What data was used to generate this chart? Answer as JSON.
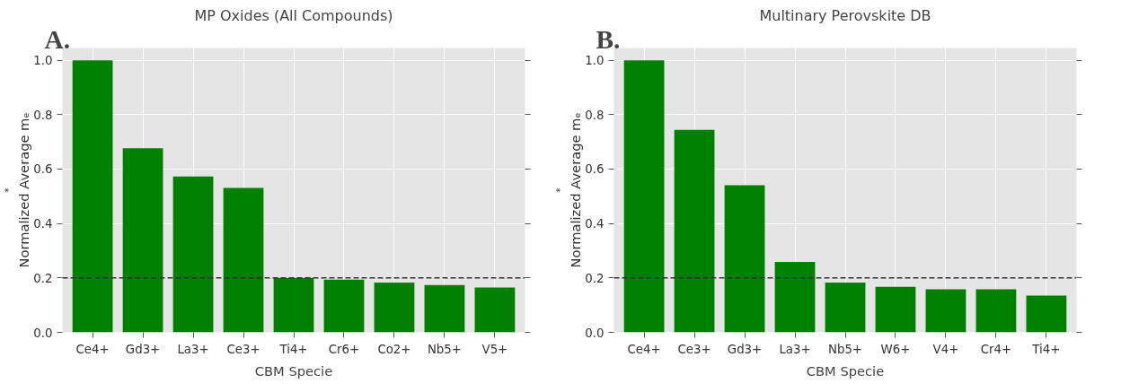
{
  "chart_data": [
    {
      "type": "bar",
      "title": "MP Oxides (All Compounds)",
      "xlabel": "CBM Specie",
      "ylabel": "Normalized Average mₑ$^{*}$",
      "annotations": [
        "A."
      ],
      "categories": [
        "Ce4+",
        "Gd3+",
        "La3+",
        "Ce3+",
        "Ti4+",
        "Cr6+",
        "Co2+",
        "Nb5+",
        "V5+"
      ],
      "values": [
        1.0,
        0.677,
        0.573,
        0.531,
        0.2,
        0.194,
        0.183,
        0.174,
        0.165
      ],
      "color": "#008000",
      "ylim": [
        0,
        1.045
      ],
      "yticks": [
        {
          "value": 0,
          "label": "0.0"
        },
        {
          "value": 0.2,
          "label": "0.2"
        },
        {
          "value": 0.4,
          "label": "0.4"
        },
        {
          "value": 0.6,
          "label": "0.6"
        },
        {
          "value": 0.8,
          "label": "0.8"
        },
        {
          "value": 1,
          "label": "1.0"
        }
      ],
      "grid": true,
      "ref_lines": [
        {
          "axis": "y",
          "value": 0.2,
          "color": "#333333",
          "line_style": "dashed"
        }
      ]
    },
    {
      "type": "bar",
      "title": "Multinary Perovskite DB",
      "xlabel": "CBM Specie",
      "ylabel": "Normalized Average mₑ$^{*}$",
      "annotations": [
        "B."
      ],
      "categories": [
        "Ce4+",
        "Ce3+",
        "Gd3+",
        "La3+",
        "Nb5+",
        "W6+",
        "V4+",
        "Cr4+",
        "Ti4+"
      ],
      "values": [
        1.0,
        0.744,
        0.541,
        0.259,
        0.183,
        0.167,
        0.158,
        0.158,
        0.135
      ],
      "color": "#008000",
      "ylim": [
        0,
        1.045
      ],
      "yticks": [
        {
          "value": 0,
          "label": "0.0"
        },
        {
          "value": 0.2,
          "label": "0.2"
        },
        {
          "value": 0.4,
          "label": "0.4"
        },
        {
          "value": 0.6,
          "label": "0.6"
        },
        {
          "value": 0.8,
          "label": "0.8"
        },
        {
          "value": 1,
          "label": "1.0"
        }
      ],
      "grid": true,
      "ref_lines": [
        {
          "axis": "y",
          "value": 0.2,
          "color": "#333333",
          "line_style": "dashed"
        }
      ]
    }
  ]
}
